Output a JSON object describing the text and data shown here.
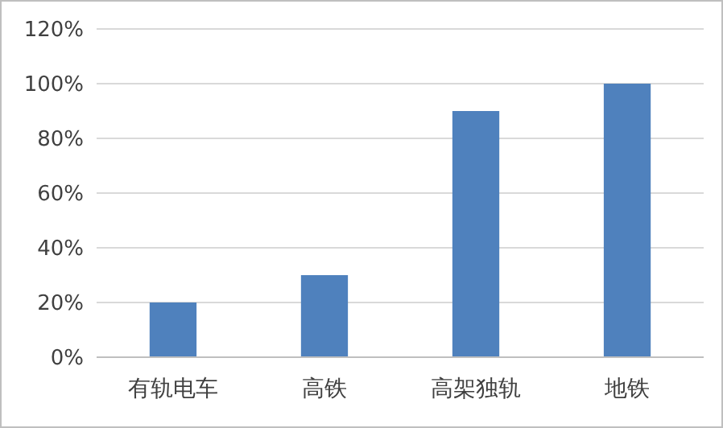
{
  "chart_data": {
    "type": "bar",
    "categories": [
      "有轨电车",
      "高铁",
      "高架独轨",
      "地铁"
    ],
    "values": [
      20,
      30,
      90,
      100
    ],
    "color": "#4f81bd",
    "ylim": [
      0,
      120
    ],
    "yticks": [
      {
        "value": 0,
        "label": "0%"
      },
      {
        "value": 20,
        "label": "20%"
      },
      {
        "value": 40,
        "label": "40%"
      },
      {
        "value": 60,
        "label": "60%"
      },
      {
        "value": 80,
        "label": "80%"
      },
      {
        "value": 100,
        "label": "100%"
      },
      {
        "value": 120,
        "label": "120%"
      }
    ],
    "grid": "y"
  }
}
